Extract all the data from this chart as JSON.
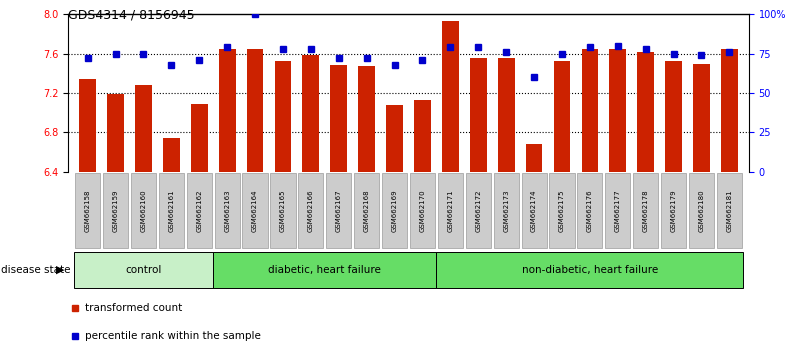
{
  "title": "GDS4314 / 8156945",
  "samples": [
    "GSM662158",
    "GSM662159",
    "GSM662160",
    "GSM662161",
    "GSM662162",
    "GSM662163",
    "GSM662164",
    "GSM662165",
    "GSM662166",
    "GSM662167",
    "GSM662168",
    "GSM662169",
    "GSM662170",
    "GSM662171",
    "GSM662172",
    "GSM662173",
    "GSM662174",
    "GSM662175",
    "GSM662176",
    "GSM662177",
    "GSM662178",
    "GSM662179",
    "GSM662180",
    "GSM662181"
  ],
  "bar_values": [
    7.34,
    7.19,
    7.28,
    6.74,
    7.09,
    7.65,
    7.65,
    7.52,
    7.59,
    7.48,
    7.47,
    7.08,
    7.13,
    7.93,
    7.55,
    7.55,
    6.68,
    7.52,
    7.65,
    7.65,
    7.62,
    7.52,
    7.49,
    7.65
  ],
  "percentile_values": [
    72,
    75,
    75,
    68,
    71,
    79,
    100,
    78,
    78,
    72,
    72,
    68,
    71,
    79,
    79,
    76,
    60,
    75,
    79,
    80,
    78,
    75,
    74,
    76
  ],
  "ylim_left": [
    6.4,
    8.0
  ],
  "ylim_right": [
    0,
    100
  ],
  "yticks_left": [
    6.4,
    6.8,
    7.2,
    7.6,
    8.0
  ],
  "yticks_right": [
    0,
    25,
    50,
    75,
    100
  ],
  "ytick_labels_right": [
    "0",
    "25",
    "50",
    "75",
    "100%"
  ],
  "groups_info": [
    {
      "start": 0,
      "end": 4,
      "label": "control",
      "color": "#c8f0c8"
    },
    {
      "start": 5,
      "end": 12,
      "label": "diabetic, heart failure",
      "color": "#66dd66"
    },
    {
      "start": 13,
      "end": 23,
      "label": "non-diabetic, heart failure",
      "color": "#66dd66"
    }
  ],
  "bar_color": "#CC2200",
  "percentile_color": "#0000CC",
  "bg_color": "#FFFFFF",
  "tick_bg_color": "#CCCCCC",
  "legend_items": [
    {
      "label": "transformed count",
      "color": "#CC2200"
    },
    {
      "label": "percentile rank within the sample",
      "color": "#0000CC"
    }
  ]
}
